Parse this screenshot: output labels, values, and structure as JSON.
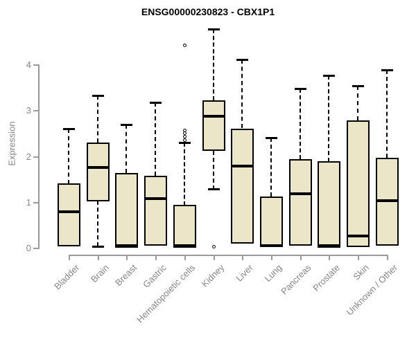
{
  "title": "ENSG00000230823 - CBX1P1",
  "chart_data": {
    "type": "boxplot",
    "title": "ENSG00000230823 - CBX1P1",
    "xlabel": "",
    "ylabel": "Expression",
    "ylim": [
      0,
      4
    ],
    "yticks": [
      0,
      1,
      2,
      3,
      4
    ],
    "grid": false,
    "legend": "none",
    "categories": [
      "Bladder",
      "Brain",
      "Breast",
      "Gastric",
      "Hematopoietic cells",
      "Kidney",
      "Liver",
      "Lung",
      "Pancreas",
      "Prostate",
      "Skin",
      "Unknown / Other"
    ],
    "boxes": [
      {
        "category": "Bladder",
        "whisker_low": 0.02,
        "q1": 0.02,
        "median": 0.78,
        "q3": 1.4,
        "whisker_high": 2.6,
        "outliers": []
      },
      {
        "category": "Brain",
        "whisker_low": 0.03,
        "q1": 1.02,
        "median": 1.75,
        "q3": 2.3,
        "whisker_high": 3.32,
        "outliers": []
      },
      {
        "category": "Breast",
        "whisker_low": 0.0,
        "q1": 0.0,
        "median": 0.05,
        "q3": 1.63,
        "whisker_high": 2.68,
        "outliers": []
      },
      {
        "category": "Gastric",
        "whisker_low": 0.05,
        "q1": 0.05,
        "median": 1.07,
        "q3": 1.57,
        "whisker_high": 3.17,
        "outliers": []
      },
      {
        "category": "Hematopoietic cells",
        "whisker_low": 0.0,
        "q1": 0.0,
        "median": 0.04,
        "q3": 0.93,
        "whisker_high": 2.3,
        "outliers": [
          2.35,
          2.43,
          2.5,
          2.57,
          4.42
        ]
      },
      {
        "category": "Kidney",
        "whisker_low": 1.28,
        "q1": 2.12,
        "median": 2.87,
        "q3": 3.22,
        "whisker_high": 4.77,
        "outliers": [
          0.03
        ]
      },
      {
        "category": "Liver",
        "whisker_low": 0.09,
        "q1": 0.09,
        "median": 1.78,
        "q3": 2.6,
        "whisker_high": 4.1,
        "outliers": []
      },
      {
        "category": "Lung",
        "whisker_low": 0.03,
        "q1": 0.03,
        "median": 0.05,
        "q3": 1.12,
        "whisker_high": 2.4,
        "outliers": []
      },
      {
        "category": "Pancreas",
        "whisker_low": 0.04,
        "q1": 0.04,
        "median": 1.18,
        "q3": 1.93,
        "whisker_high": 3.47,
        "outliers": []
      },
      {
        "category": "Prostate",
        "whisker_low": 0.0,
        "q1": 0.0,
        "median": 0.04,
        "q3": 1.88,
        "whisker_high": 3.76,
        "outliers": []
      },
      {
        "category": "Skin",
        "whisker_low": 0.02,
        "q1": 0.02,
        "median": 0.26,
        "q3": 2.78,
        "whisker_high": 3.53,
        "outliers": []
      },
      {
        "category": "Unknown / Other",
        "whisker_low": 0.04,
        "q1": 0.04,
        "median": 1.03,
        "q3": 1.96,
        "whisker_high": 3.88,
        "outliers": []
      }
    ],
    "colors": {
      "box_fill": "#ece6c8",
      "box_border": "#000000",
      "median": "#000000",
      "whisker": "#000000",
      "axis": "#9b9b9b",
      "tick_label": "#858585",
      "title": "#000000",
      "background": "#ffffff"
    }
  }
}
